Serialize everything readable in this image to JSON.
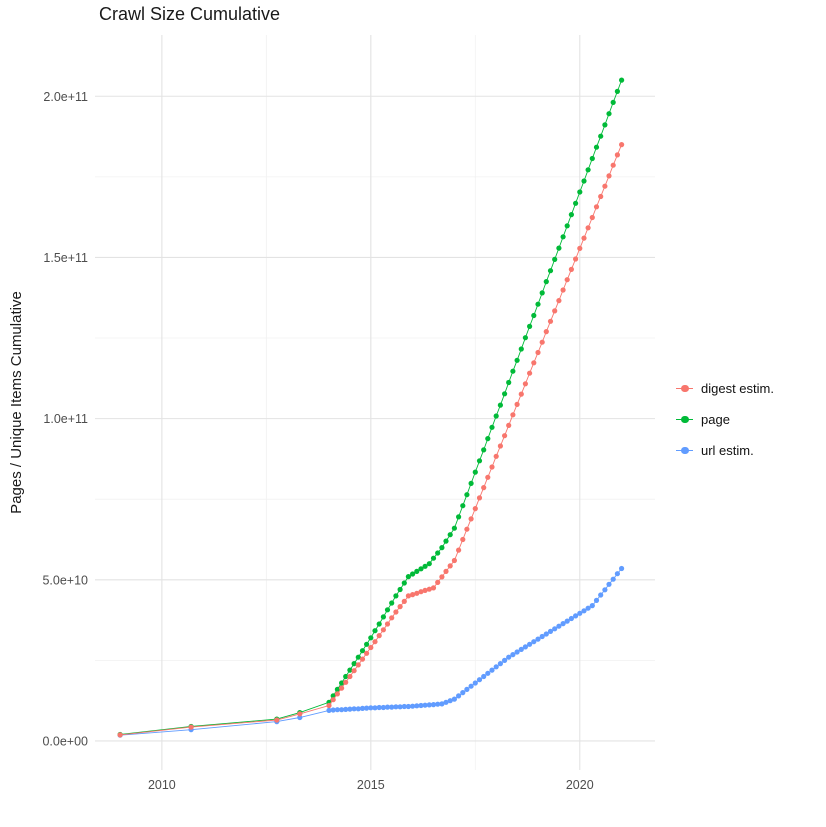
{
  "page": {
    "background": "#FFFFFF"
  },
  "chart_data": {
    "type": "scatter",
    "title": "Crawl Size Cumulative",
    "xlabel": "",
    "ylabel": "Pages / Unique Items Cumulative",
    "y_unit_multiplier": "1e9",
    "xlim": [
      2008.4,
      2021.8
    ],
    "ylim_billions": [
      -9,
      219
    ],
    "grid": {
      "show": true,
      "major_color": "#E3E3E3",
      "minor_color": "#F1F1F1"
    },
    "x_ticks": {
      "values": [
        2010,
        2015,
        2020
      ],
      "labels": [
        "2010",
        "2015",
        "2020"
      ],
      "minor": [
        2012.5,
        2017.5
      ]
    },
    "y_ticks": {
      "values_billions": [
        0,
        50,
        100,
        150,
        200
      ],
      "labels": [
        "0.0e+00",
        "5.0e+10",
        "1.0e+11",
        "1.5e+11",
        "2.0e+11"
      ],
      "minor_billions": [
        25,
        75,
        125,
        175
      ]
    },
    "legend": {
      "position": "right",
      "entries": [
        "digest estim.",
        "page",
        "url estim."
      ]
    },
    "x": [
      2009,
      2010.7,
      2012.75,
      2013.3,
      2014,
      2014.1,
      2014.2,
      2014.3,
      2014.4,
      2014.5,
      2014.6,
      2014.7,
      2014.8,
      2014.9,
      2015,
      2015.1,
      2015.2,
      2015.3,
      2015.4,
      2015.5,
      2015.6,
      2015.7,
      2015.8,
      2015.9,
      2016,
      2016.1,
      2016.2,
      2016.3,
      2016.4,
      2016.5,
      2016.6,
      2016.7,
      2016.8,
      2016.9,
      2017,
      2017.1,
      2017.2,
      2017.3,
      2017.4,
      2017.5,
      2017.6,
      2017.7,
      2017.8,
      2017.9,
      2018,
      2018.1,
      2018.2,
      2018.3,
      2018.4,
      2018.5,
      2018.6,
      2018.7,
      2018.8,
      2018.9,
      2019,
      2019.1,
      2019.2,
      2019.3,
      2019.4,
      2019.5,
      2019.6,
      2019.7,
      2019.8,
      2019.9,
      2020,
      2020.1,
      2020.2,
      2020.3,
      2020.4,
      2020.5,
      2020.6,
      2020.7,
      2020.8,
      2020.9,
      2021
    ],
    "series": [
      {
        "name": "digest estim.",
        "color": "#F8766D",
        "values_billions": [
          1.9,
          4.3,
          6.5,
          8.4,
          11,
          12.8,
          14.6,
          16.4,
          18.2,
          20,
          21.8,
          23.6,
          25.4,
          27.2,
          29,
          30.8,
          32.7,
          34.5,
          36.3,
          38.2,
          40,
          41.7,
          43.3,
          45,
          45.4,
          45.8,
          46.3,
          46.7,
          47.1,
          47.5,
          49.2,
          50.9,
          52.6,
          54.3,
          56,
          59.2,
          62.5,
          65.7,
          68.9,
          72.1,
          75.4,
          78.6,
          81.8,
          85,
          88.3,
          91.5,
          94.7,
          97.9,
          101.2,
          104.4,
          107.6,
          110.8,
          114.1,
          117.3,
          120.5,
          123.7,
          127,
          130.2,
          133.4,
          136.6,
          139.9,
          143.1,
          146.3,
          149.5,
          152.8,
          156,
          159.2,
          162.4,
          165.7,
          168.9,
          172.1,
          175.3,
          178.6,
          181.8,
          185
        ]
      },
      {
        "name": "page",
        "color": "#00BA38",
        "values_billions": [
          2,
          4.5,
          6.8,
          8.8,
          12,
          14,
          16,
          18,
          20,
          22,
          24,
          26,
          28,
          30,
          32,
          34.2,
          36.3,
          38.5,
          40.7,
          42.8,
          45,
          47,
          49,
          51,
          51.8,
          52.6,
          53.4,
          54.2,
          55,
          56.7,
          58.3,
          60,
          62,
          64,
          66,
          69.5,
          73,
          76.4,
          79.9,
          83.4,
          86.9,
          90.3,
          93.8,
          97.3,
          100.8,
          104.2,
          107.7,
          111.2,
          114.7,
          118.1,
          121.6,
          125.1,
          128.6,
          132,
          135.5,
          139,
          142.5,
          145.9,
          149.4,
          152.9,
          156.4,
          159.8,
          163.3,
          166.8,
          170.3,
          173.7,
          177.2,
          180.7,
          184.2,
          187.6,
          191.1,
          194.6,
          198.1,
          201.5,
          205
        ]
      },
      {
        "name": "url estim.",
        "color": "#619CFF",
        "values_billions": [
          1.8,
          3.5,
          6,
          7.3,
          9.5,
          9.6,
          9.7,
          9.7,
          9.8,
          9.9,
          10,
          10,
          10.1,
          10.2,
          10.3,
          10.3,
          10.4,
          10.4,
          10.5,
          10.5,
          10.6,
          10.6,
          10.7,
          10.7,
          10.8,
          10.9,
          11,
          11.1,
          11.2,
          11.3,
          11.4,
          11.5,
          12,
          12.5,
          13,
          14,
          15,
          16,
          17,
          18,
          19,
          20,
          21,
          22,
          23,
          24,
          25,
          26,
          26.8,
          27.6,
          28.4,
          29.2,
          30,
          30.8,
          31.6,
          32.4,
          33.2,
          34,
          34.8,
          35.6,
          36.4,
          37.2,
          38,
          38.8,
          39.6,
          40.4,
          41.2,
          42,
          43.6,
          45.3,
          46.9,
          48.6,
          50.2,
          51.9,
          53.5
        ]
      }
    ]
  }
}
